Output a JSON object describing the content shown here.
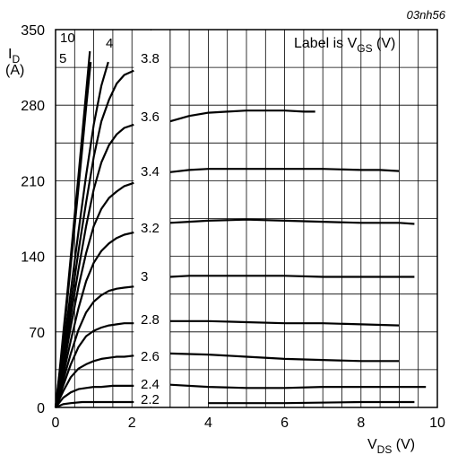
{
  "chart_data": {
    "type": "line",
    "figure_id": "03nh56",
    "legend_text": {
      "main": "Label is V",
      "sub": "GS",
      "tail": " (V)"
    },
    "y_axis": {
      "title_main": "I",
      "title_sub": "D",
      "unit": "(A)",
      "ticks": [
        "0",
        "70",
        "140",
        "210",
        "280",
        "350"
      ],
      "ylim": [
        0,
        350
      ]
    },
    "x_axis": {
      "title_main": "V",
      "title_sub": "DS",
      "unit": " (V)",
      "ticks": [
        "0",
        "2",
        "4",
        "6",
        "8",
        "10"
      ],
      "xlim": [
        0,
        10
      ]
    },
    "grid": true,
    "inset_x_break": 3,
    "series": [
      {
        "name": "10",
        "label": "10",
        "points": [
          [
            0,
            0
          ],
          [
            0.1,
            32
          ],
          [
            0.2,
            68
          ],
          [
            0.3,
            103
          ],
          [
            0.4,
            140
          ],
          [
            0.5,
            178
          ],
          [
            0.6,
            215
          ],
          [
            0.7,
            253
          ],
          [
            0.8,
            292
          ],
          [
            0.9,
            330
          ]
        ]
      },
      {
        "name": "5",
        "label": "5",
        "points": [
          [
            0,
            0
          ],
          [
            0.1,
            30
          ],
          [
            0.2,
            63
          ],
          [
            0.3,
            97
          ],
          [
            0.4,
            132
          ],
          [
            0.5,
            168
          ],
          [
            0.6,
            204
          ],
          [
            0.7,
            240
          ],
          [
            0.8,
            278
          ],
          [
            0.92,
            320
          ]
        ]
      },
      {
        "name": "4",
        "label": "4",
        "points": [
          [
            0,
            0
          ],
          [
            0.2,
            52
          ],
          [
            0.4,
            108
          ],
          [
            0.6,
            163
          ],
          [
            0.8,
            215
          ],
          [
            1.0,
            262
          ],
          [
            1.2,
            298
          ],
          [
            1.38,
            320
          ]
        ]
      },
      {
        "name": "3.8",
        "label": "3.8",
        "points": [
          [
            0,
            0
          ],
          [
            0.2,
            45
          ],
          [
            0.4,
            95
          ],
          [
            0.6,
            145
          ],
          [
            0.8,
            190
          ],
          [
            1.0,
            232
          ],
          [
            1.2,
            265
          ],
          [
            1.4,
            285
          ],
          [
            1.6,
            300
          ],
          [
            1.8,
            308
          ],
          [
            2.05,
            312
          ]
        ]
      },
      {
        "name": "3.6",
        "label": "3.6",
        "points": [
          [
            0,
            0
          ],
          [
            0.2,
            40
          ],
          [
            0.4,
            85
          ],
          [
            0.6,
            128
          ],
          [
            0.8,
            168
          ],
          [
            1.0,
            202
          ],
          [
            1.2,
            227
          ],
          [
            1.4,
            243
          ],
          [
            1.6,
            253
          ],
          [
            1.8,
            259
          ],
          [
            2.05,
            262
          ],
          [
            3.0,
            265
          ],
          [
            3.5,
            270
          ],
          [
            4.0,
            273
          ],
          [
            4.5,
            274
          ],
          [
            5.0,
            275
          ],
          [
            5.5,
            275
          ],
          [
            6.0,
            275
          ],
          [
            6.5,
            274
          ],
          [
            6.8,
            274
          ]
        ]
      },
      {
        "name": "3.4",
        "label": "3.4",
        "points": [
          [
            0,
            0
          ],
          [
            0.2,
            35
          ],
          [
            0.4,
            75
          ],
          [
            0.6,
            112
          ],
          [
            0.8,
            143
          ],
          [
            1.0,
            168
          ],
          [
            1.2,
            184
          ],
          [
            1.4,
            194
          ],
          [
            1.6,
            200
          ],
          [
            1.8,
            205
          ],
          [
            2.05,
            208
          ],
          [
            3.0,
            218
          ],
          [
            3.5,
            220
          ],
          [
            4.0,
            221
          ],
          [
            5.0,
            221
          ],
          [
            6.0,
            221
          ],
          [
            7.0,
            221
          ],
          [
            8.0,
            220
          ],
          [
            8.5,
            220
          ],
          [
            9.0,
            219
          ]
        ]
      },
      {
        "name": "3.2",
        "label": "3.2",
        "points": [
          [
            0,
            0
          ],
          [
            0.2,
            30
          ],
          [
            0.4,
            62
          ],
          [
            0.6,
            92
          ],
          [
            0.8,
            117
          ],
          [
            1.0,
            134
          ],
          [
            1.2,
            145
          ],
          [
            1.4,
            152
          ],
          [
            1.6,
            157
          ],
          [
            1.8,
            160
          ],
          [
            2.05,
            162
          ],
          [
            3.0,
            171
          ],
          [
            3.5,
            172
          ],
          [
            4.0,
            173
          ],
          [
            5.0,
            174
          ],
          [
            6.0,
            173
          ],
          [
            7.0,
            172
          ],
          [
            8.0,
            171
          ],
          [
            9.0,
            171
          ],
          [
            9.4,
            170
          ]
        ]
      },
      {
        "name": "3",
        "label": "3",
        "points": [
          [
            0,
            0
          ],
          [
            0.2,
            25
          ],
          [
            0.4,
            50
          ],
          [
            0.6,
            72
          ],
          [
            0.8,
            88
          ],
          [
            1.0,
            98
          ],
          [
            1.2,
            104
          ],
          [
            1.4,
            108
          ],
          [
            1.6,
            110
          ],
          [
            1.8,
            111
          ],
          [
            2.05,
            112
          ],
          [
            3.0,
            121
          ],
          [
            3.5,
            122
          ],
          [
            4.0,
            122
          ],
          [
            5.0,
            122
          ],
          [
            6.0,
            122
          ],
          [
            7.0,
            121
          ],
          [
            8.0,
            121
          ],
          [
            9.0,
            121
          ],
          [
            9.4,
            121
          ]
        ]
      },
      {
        "name": "2.8",
        "label": "2.8",
        "points": [
          [
            0,
            0
          ],
          [
            0.2,
            20
          ],
          [
            0.4,
            40
          ],
          [
            0.6,
            56
          ],
          [
            0.8,
            66
          ],
          [
            1.0,
            71
          ],
          [
            1.2,
            74
          ],
          [
            1.4,
            76
          ],
          [
            1.6,
            77
          ],
          [
            1.8,
            78
          ],
          [
            2.05,
            78
          ],
          [
            3.0,
            80
          ],
          [
            4.0,
            80
          ],
          [
            5.0,
            79
          ],
          [
            6.0,
            78
          ],
          [
            7.0,
            78
          ],
          [
            8.0,
            77
          ],
          [
            9.0,
            76
          ]
        ]
      },
      {
        "name": "2.6",
        "label": "2.6",
        "points": [
          [
            0,
            0
          ],
          [
            0.2,
            15
          ],
          [
            0.4,
            28
          ],
          [
            0.6,
            36
          ],
          [
            0.8,
            40
          ],
          [
            1.0,
            43
          ],
          [
            1.2,
            45
          ],
          [
            1.4,
            46
          ],
          [
            1.6,
            47
          ],
          [
            1.8,
            47
          ],
          [
            2.05,
            48
          ],
          [
            3.0,
            50
          ],
          [
            4.0,
            49
          ],
          [
            5.0,
            47
          ],
          [
            6.0,
            45
          ],
          [
            7.0,
            44
          ],
          [
            8.0,
            43
          ],
          [
            9.0,
            43
          ]
        ]
      },
      {
        "name": "2.4",
        "label": "2.4",
        "points": [
          [
            0,
            0
          ],
          [
            0.2,
            9
          ],
          [
            0.4,
            14
          ],
          [
            0.6,
            17
          ],
          [
            0.8,
            18
          ],
          [
            1.0,
            19
          ],
          [
            1.2,
            19
          ],
          [
            1.5,
            20
          ],
          [
            2.05,
            20
          ],
          [
            3.0,
            21
          ],
          [
            4.0,
            19
          ],
          [
            5.0,
            18
          ],
          [
            6.0,
            18
          ],
          [
            7.0,
            19
          ],
          [
            8.0,
            19
          ],
          [
            9.0,
            19
          ],
          [
            9.7,
            19
          ]
        ]
      },
      {
        "name": "2.2",
        "label": "2.2",
        "points": [
          [
            0,
            0
          ],
          [
            0.2,
            3
          ],
          [
            0.4,
            4
          ],
          [
            0.7,
            5
          ],
          [
            1.0,
            5
          ],
          [
            1.5,
            5
          ],
          [
            2.05,
            5
          ],
          [
            4.0,
            4
          ],
          [
            6.0,
            4
          ],
          [
            8.0,
            5
          ],
          [
            9.4,
            5
          ]
        ]
      }
    ]
  }
}
